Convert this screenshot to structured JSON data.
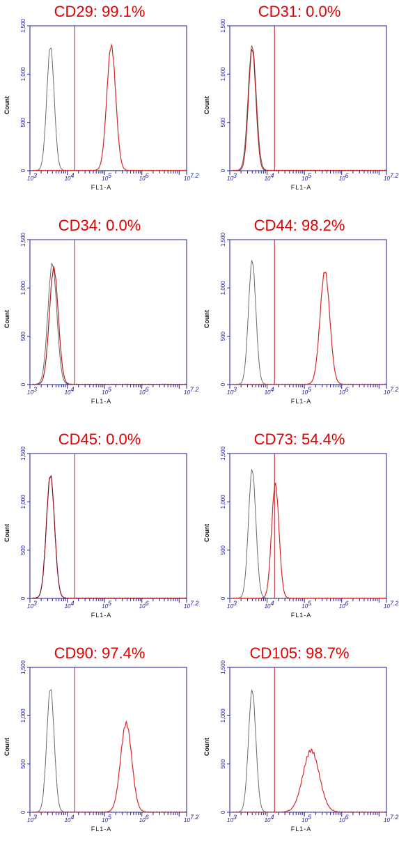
{
  "chart_data": [
    {
      "type": "histogram",
      "title": "CD29: 99.1%",
      "xlabel": "FL1-A",
      "ylabel": "Count",
      "ylim": [
        0,
        1500
      ],
      "yticks": [
        "0",
        "500",
        "1,000",
        "1,500"
      ],
      "xlim_log10": [
        3,
        7.2
      ],
      "xticks": [
        "10^3",
        "10^4",
        "10^5",
        "10^6",
        "10^7.2"
      ],
      "gate_log10": 4.2,
      "series": [
        {
          "color": "#6a6a6a",
          "peak_log10": 3.55,
          "peak_count": 1280,
          "width": 0.1
        },
        {
          "color": "#d42a2a",
          "peak_log10": 5.18,
          "peak_count": 1290,
          "width": 0.12
        }
      ]
    },
    {
      "type": "histogram",
      "title": "CD31: 0.0%",
      "xlabel": "FL1-A",
      "ylabel": "Count",
      "ylim": [
        0,
        1500
      ],
      "yticks": [
        "0",
        "500",
        "1,000",
        "1,500"
      ],
      "xlim_log10": [
        3,
        7.2
      ],
      "xticks": [
        "10^3",
        "10^4",
        "10^5",
        "10^6",
        "10^7.2"
      ],
      "gate_log10": 4.2,
      "series": [
        {
          "color": "#6a6a6a",
          "peak_log10": 3.6,
          "peak_count": 1290,
          "width": 0.11
        },
        {
          "color": "#b41d1d",
          "peak_log10": 3.6,
          "peak_count": 1260,
          "width": 0.1
        }
      ]
    },
    {
      "type": "histogram",
      "title": "CD34: 0.0%",
      "xlabel": "FL1-A",
      "ylabel": "Count",
      "ylim": [
        0,
        1500
      ],
      "yticks": [
        "0",
        "500",
        "1,000",
        "1,500"
      ],
      "xlim_log10": [
        3,
        7.2
      ],
      "xticks": [
        "10^3",
        "10^4",
        "10^5",
        "10^6",
        "10^7.2"
      ],
      "gate_log10": 4.2,
      "series": [
        {
          "color": "#6a6a6a",
          "peak_log10": 3.6,
          "peak_count": 1250,
          "width": 0.12
        },
        {
          "color": "#b41d1d",
          "peak_log10": 3.64,
          "peak_count": 1200,
          "width": 0.12
        }
      ]
    },
    {
      "type": "histogram",
      "title": "CD44: 98.2%",
      "xlabel": "FL1-A",
      "ylabel": "Count",
      "ylim": [
        0,
        1500
      ],
      "yticks": [
        "0",
        "500",
        "1,000",
        "1,500"
      ],
      "xlim_log10": [
        3,
        7.2
      ],
      "xticks": [
        "10^3",
        "10^4",
        "10^5",
        "10^6",
        "10^7.2"
      ],
      "gate_log10": 4.2,
      "series": [
        {
          "color": "#6a6a6a",
          "peak_log10": 3.6,
          "peak_count": 1280,
          "width": 0.1
        },
        {
          "color": "#d42a2a",
          "peak_log10": 5.55,
          "peak_count": 1170,
          "width": 0.13
        }
      ]
    },
    {
      "type": "histogram",
      "title": "CD45: 0.0%",
      "xlabel": "FL1-A",
      "ylabel": "Count",
      "ylim": [
        0,
        1500
      ],
      "yticks": [
        "0",
        "500",
        "1,000",
        "1,500"
      ],
      "xlim_log10": [
        3,
        7.2
      ],
      "xticks": [
        "10^3",
        "10^4",
        "10^5",
        "10^6",
        "10^7.2"
      ],
      "gate_log10": 4.2,
      "series": [
        {
          "color": "#6a6a6a",
          "peak_log10": 3.55,
          "peak_count": 1275,
          "width": 0.11
        },
        {
          "color": "#8a1020",
          "peak_log10": 3.55,
          "peak_count": 1270,
          "width": 0.11
        }
      ]
    },
    {
      "type": "histogram",
      "title": "CD73: 54.4%",
      "xlabel": "FL1-A",
      "ylabel": "Count",
      "ylim": [
        0,
        1500
      ],
      "yticks": [
        "0",
        "500",
        "1,000",
        "1,500"
      ],
      "xlim_log10": [
        3,
        7.2
      ],
      "xticks": [
        "10^3",
        "10^4",
        "10^5",
        "10^6",
        "10^7.2"
      ],
      "gate_log10": 4.2,
      "series": [
        {
          "color": "#6a6a6a",
          "peak_log10": 3.6,
          "peak_count": 1330,
          "width": 0.1
        },
        {
          "color": "#d42a2a",
          "peak_log10": 4.22,
          "peak_count": 1180,
          "width": 0.1
        }
      ]
    },
    {
      "type": "histogram",
      "title": "CD90: 97.4%",
      "xlabel": "FL1-A",
      "ylabel": "Count",
      "ylim": [
        0,
        1500
      ],
      "yticks": [
        "0",
        "500",
        "1,000",
        "1,500"
      ],
      "xlim_log10": [
        3,
        7.2
      ],
      "xticks": [
        "10^3",
        "10^4",
        "10^5",
        "10^6",
        "10^7.2"
      ],
      "gate_log10": 4.2,
      "series": [
        {
          "color": "#6a6a6a",
          "peak_log10": 3.55,
          "peak_count": 1280,
          "width": 0.1
        },
        {
          "color": "#d42a2a",
          "peak_log10": 5.58,
          "peak_count": 920,
          "width": 0.15
        }
      ]
    },
    {
      "type": "histogram",
      "title": "CD105: 98.7%",
      "xlabel": "FL1-A",
      "ylabel": "Count",
      "ylim": [
        0,
        1500
      ],
      "yticks": [
        "0",
        "500",
        "1,000",
        "1,500"
      ],
      "xlim_log10": [
        3,
        7.2
      ],
      "xticks": [
        "10^3",
        "10^4",
        "10^5",
        "10^6",
        "10^7.2"
      ],
      "gate_log10": 4.2,
      "series": [
        {
          "color": "#6a6a6a",
          "peak_log10": 3.6,
          "peak_count": 1260,
          "width": 0.1
        },
        {
          "color": "#d42a2a",
          "peak_log10": 5.18,
          "peak_count": 640,
          "width": 0.22
        }
      ]
    }
  ]
}
